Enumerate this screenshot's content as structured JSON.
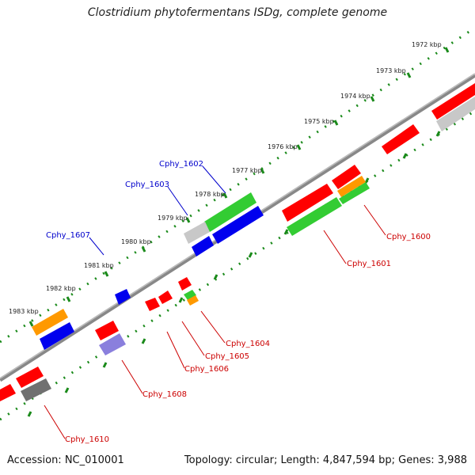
{
  "title": "Clostridium phytofermentans ISDg, complete genome",
  "footer": {
    "accession": "Accession: NC_010001",
    "summary": "Topology: circular; Length: 4,847,594 bp; Genes: 3,988"
  },
  "ruler": {
    "unit_labels": [
      "1972 kbp",
      "1973 kbp",
      "1974 kbp",
      "1975 kbp",
      "1976 kbp",
      "1977 kbp",
      "1978 kbp",
      "1979 kbp",
      "1980 kbp",
      "1981 kbp",
      "1982 kbp",
      "1983 kbp"
    ]
  },
  "colors": {
    "red": "#ff0000",
    "green": "#33cc33",
    "blue": "#0000ee",
    "orange": "#ff9900",
    "gray_light": "#c8c8c8",
    "gray_dark": "#707070",
    "purple": "#8a7fdd",
    "label_blue": "#0000cc",
    "label_red": "#cc0000"
  },
  "gene_labels": {
    "top": [
      "Cphy_1602",
      "Cphy_1603",
      "Cphy_1607"
    ],
    "bottom": [
      "Cphy_1600",
      "Cphy_1601",
      "Cphy_1604",
      "Cphy_1605",
      "Cphy_1606",
      "Cphy_1608",
      "Cphy_1610"
    ]
  }
}
